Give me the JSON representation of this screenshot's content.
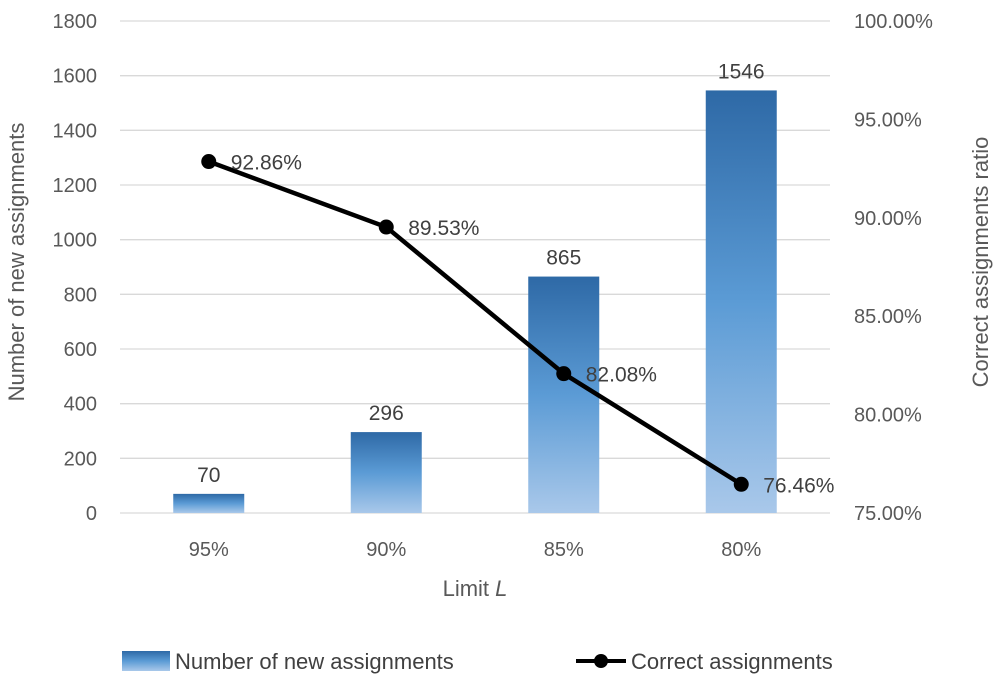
{
  "chart_data": {
    "type": "bar",
    "categories": [
      "95%",
      "90%",
      "85%",
      "80%"
    ],
    "series": [
      {
        "name": "Number of new assignments",
        "type": "bar",
        "axis": "left",
        "values": [
          70,
          296,
          865,
          1546
        ],
        "labels": [
          "70",
          "296",
          "865",
          "1546"
        ]
      },
      {
        "name": "Correct assignments",
        "type": "line",
        "axis": "right",
        "values": [
          92.86,
          89.53,
          82.08,
          76.46
        ],
        "labels": [
          "92.86%",
          "89.53%",
          "82.08%",
          "76.46%"
        ]
      }
    ],
    "xlabel": "Limit",
    "xlabel_var": "L",
    "ylabel": "Number of new assignments",
    "ylabel_right": "Correct assignments ratio",
    "ylim": [
      0,
      1800
    ],
    "yticks": [
      "0",
      "200",
      "400",
      "600",
      "800",
      "1000",
      "1200",
      "1400",
      "1600",
      "1800"
    ],
    "ylim_right": [
      75,
      100
    ],
    "yticks_right": [
      "75.00%",
      "80.00%",
      "85.00%",
      "90.00%",
      "95.00%",
      "100.00%"
    ],
    "grid": true,
    "legend_position": "bottom",
    "colors": {
      "bar_top": "#2e69a6",
      "bar_mid": "#5b9bd5",
      "bar_bottom": "#a9c8ea",
      "line": "#000000",
      "grid": "#d9d9d9",
      "text": "#595959"
    }
  }
}
